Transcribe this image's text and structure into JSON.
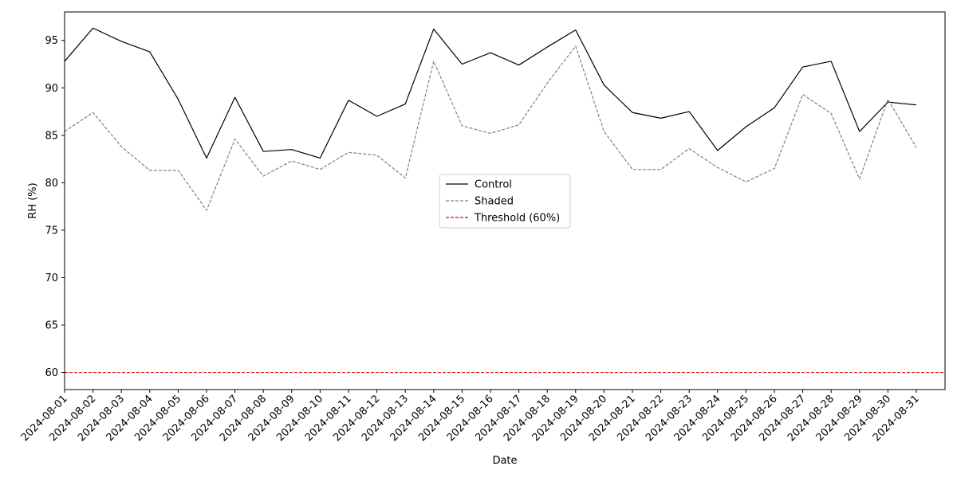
{
  "chart_data": {
    "type": "line",
    "xlabel": "Date",
    "ylabel": "RH (%)",
    "ylim": [
      58.2,
      98
    ],
    "yticks": [
      60,
      65,
      70,
      75,
      80,
      85,
      90,
      95
    ],
    "x": [
      "2024-08-01",
      "2024-08-02",
      "2024-08-03",
      "2024-08-04",
      "2024-08-05",
      "2024-08-06",
      "2024-08-07",
      "2024-08-08",
      "2024-08-09",
      "2024-08-10",
      "2024-08-11",
      "2024-08-12",
      "2024-08-13",
      "2024-08-14",
      "2024-08-15",
      "2024-08-16",
      "2024-08-17",
      "2024-08-18",
      "2024-08-19",
      "2024-08-20",
      "2024-08-21",
      "2024-08-22",
      "2024-08-23",
      "2024-08-24",
      "2024-08-25",
      "2024-08-26",
      "2024-08-27",
      "2024-08-28",
      "2024-08-29",
      "2024-08-30",
      "2024-08-31"
    ],
    "series": [
      {
        "name": "Control",
        "color": "#000000",
        "style": "solid",
        "values": [
          92.8,
          96.3,
          94.9,
          93.8,
          88.8,
          82.6,
          89.0,
          83.3,
          83.5,
          82.6,
          88.7,
          87.0,
          88.3,
          96.2,
          92.5,
          93.7,
          92.4,
          94.3,
          96.1,
          90.3,
          87.4,
          86.8,
          87.5,
          83.4,
          85.9,
          87.9,
          92.2,
          92.8,
          85.4,
          88.5,
          88.2
        ]
      },
      {
        "name": "Shaded",
        "color": "#808080",
        "style": "dashed",
        "values": [
          85.4,
          87.4,
          83.8,
          81.3,
          81.3,
          77.1,
          84.6,
          80.7,
          82.3,
          81.4,
          83.2,
          82.9,
          80.5,
          92.8,
          86.0,
          85.2,
          86.1,
          90.5,
          94.4,
          85.4,
          81.4,
          81.4,
          83.6,
          81.6,
          80.1,
          81.5,
          89.3,
          87.3,
          80.4,
          88.8,
          83.7
        ]
      }
    ],
    "threshold": {
      "name": "Threshold (60%)",
      "value": 60,
      "color": "#e00000",
      "style": "dashed"
    },
    "legend": {
      "placement": "center"
    },
    "grid": false
  }
}
